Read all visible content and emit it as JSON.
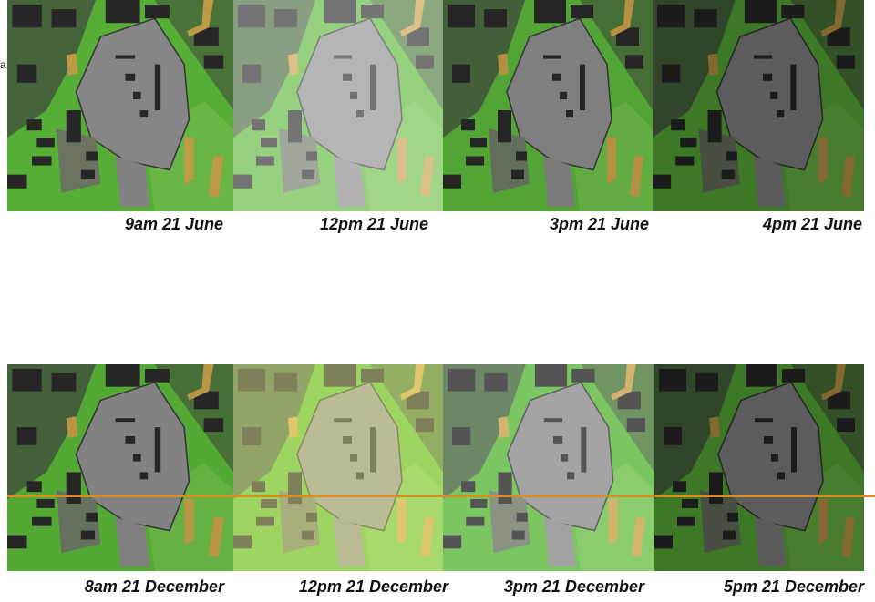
{
  "margin_fragment": "a",
  "rows": [
    {
      "captions": [
        "9am 21 June",
        "12pm 21 June",
        "3pm 21 June",
        "4pm 21 June"
      ]
    },
    {
      "captions": [
        "8am 21 December",
        "12pm 21 December",
        "3pm 21 December",
        "5pm 21 December"
      ]
    }
  ]
}
